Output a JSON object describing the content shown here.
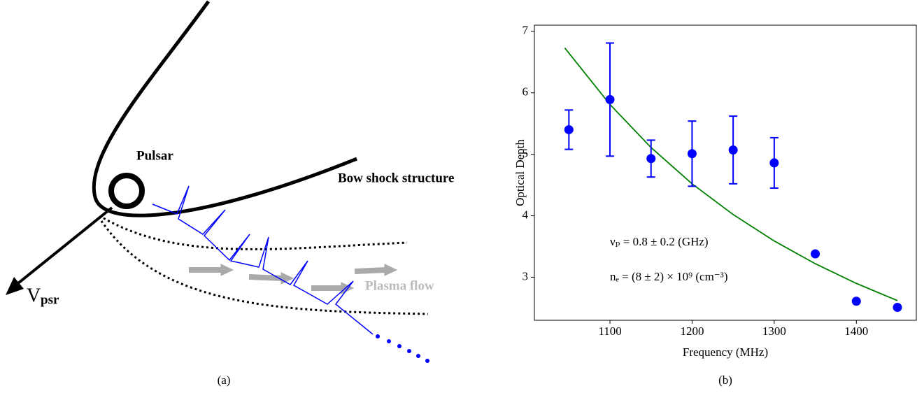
{
  "diagram": {
    "pulsar_label": "Pulsar",
    "shock_label": "Bow shock structure",
    "velocity_symbol": "V",
    "velocity_subscript": "psr",
    "flow_label": "Plasma flow",
    "caption": "(a)"
  },
  "chart_data": {
    "type": "scatter",
    "caption": "(b)",
    "xlabel": "Frequency (MHz)",
    "ylabel": "Optical Depth",
    "points": {
      "color": "#0000ff",
      "x": [
        1050,
        1100,
        1150,
        1200,
        1250,
        1300,
        1350,
        1400,
        1450
      ],
      "values": [
        5.4,
        5.89,
        4.93,
        5.01,
        5.07,
        4.86,
        3.38,
        2.61,
        2.51
      ],
      "errors": [
        0.32,
        0.92,
        0.3,
        0.53,
        0.55,
        0.41,
        null,
        null,
        null
      ]
    },
    "fit": {
      "color": "#008000",
      "x": [
        1045,
        1100,
        1150,
        1200,
        1250,
        1300,
        1350,
        1400,
        1450
      ],
      "values": [
        6.73,
        5.81,
        5.11,
        4.52,
        4.02,
        3.59,
        3.22,
        2.9,
        2.62
      ]
    },
    "annotations": [
      "νₚ = 0.8 ± 0.2 (GHz)",
      "nₑ = (8 ± 2) × 10⁹ (cm⁻³)"
    ],
    "xlim": [
      1008,
      1473
    ],
    "ylim": [
      2.3,
      7.1
    ],
    "xticks": [
      1100,
      1200,
      1300,
      1400
    ],
    "yticks": [
      3,
      4,
      5,
      6,
      7
    ]
  }
}
